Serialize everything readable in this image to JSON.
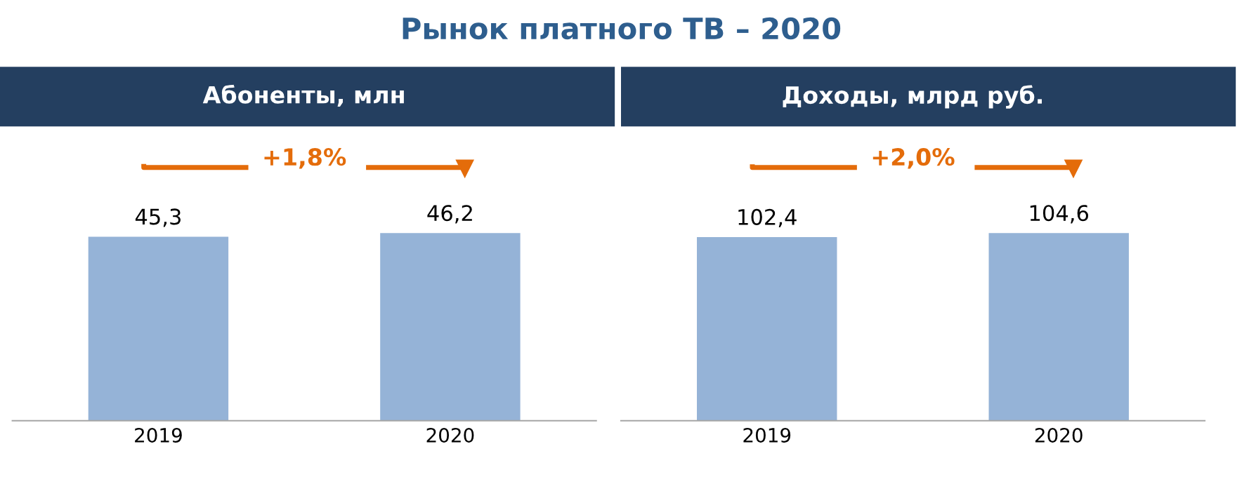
{
  "chart_data": [
    {
      "type": "bar",
      "title": "Абоненты, млн",
      "categories": [
        "2019",
        "2020"
      ],
      "values": [
        45.3,
        46.2
      ],
      "value_labels": [
        "45,3",
        "46,2"
      ],
      "color": "#95b3d7",
      "tick_labels": "x",
      "grid": false,
      "legend": false,
      "annotations": [
        "Рынок платного ТВ – 2020",
        "+1,8%"
      ]
    },
    {
      "type": "bar",
      "title": "Доходы, млрд руб.",
      "categories": [
        "2019",
        "2020"
      ],
      "values": [
        102.4,
        104.6
      ],
      "value_labels": [
        "102,4",
        "104,6"
      ],
      "color": "#95b3d7",
      "tick_labels": "x",
      "grid": false,
      "legend": false,
      "annotations": [
        "+2,0%"
      ]
    }
  ]
}
